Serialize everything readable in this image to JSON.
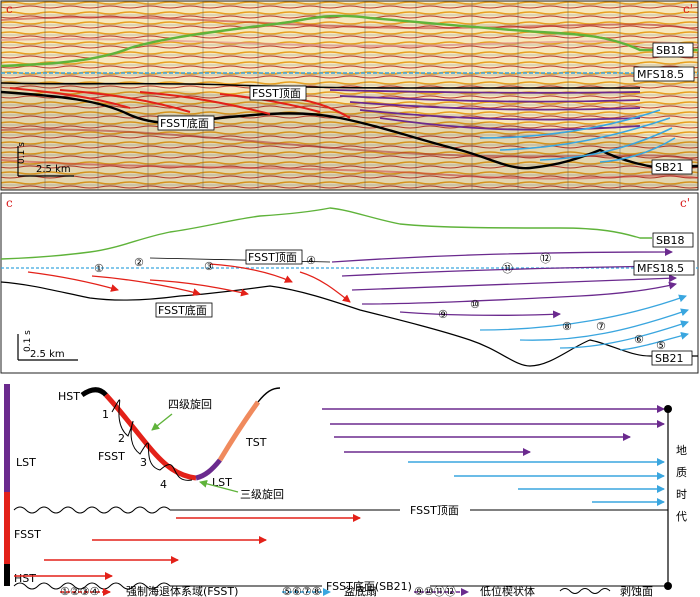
{
  "panel_top": {
    "corner_left": "c",
    "corner_right": "c'",
    "labels": {
      "sb18": "SB18",
      "mfs": "MFS18.5",
      "sb21": "SB21",
      "fsst_top": "FSST顶面",
      "fsst_bottom": "FSST底面",
      "vscale": "0.1 s",
      "hscale": "2.5 km"
    }
  },
  "panel_mid": {
    "corner_left": "c",
    "corner_right": "c'",
    "labels": {
      "sb18": "SB18",
      "mfs": "MFS18.5",
      "sb21": "SB21",
      "fsst_top": "FSST顶面",
      "fsst_bottom": "FSST底面",
      "vscale": "0.1 s",
      "hscale": "2.5 km"
    },
    "numbers": [
      "①",
      "②",
      "③",
      "④",
      "⑤",
      "⑥",
      "⑦",
      "⑧",
      "⑨",
      "⑩",
      "⑪",
      "⑫"
    ]
  },
  "panel_bottom": {
    "left_labels": {
      "lst": "LST",
      "fsst": "FSST",
      "hst": "HST"
    },
    "curve_labels": {
      "hst": "HST",
      "fsst": "FSST",
      "tst": "TST",
      "lst": "LST",
      "n1": "1",
      "n2": "2",
      "n3": "3",
      "n4": "4",
      "fourth_order": "四级旋回",
      "third_order": "三级旋回"
    },
    "surface_top": "FSST顶面",
    "surface_bottom": "FSST底面(SB21)",
    "time_axis": [
      "地",
      "质",
      "时",
      "代"
    ]
  },
  "legend": {
    "fsst_nums": "①②③④",
    "fsst_text": "强制海退体系域(FSST)",
    "fan_nums": "⑤⑥⑦⑧",
    "fan_text": "盆底扇",
    "wedge_nums": "⑨⑩⑪⑫",
    "wedge_text": "低位楔状体",
    "erosion_text": "剥蚀面"
  },
  "colors": {
    "red": "#e32119",
    "purple": "#6b2a8e",
    "blue": "#3aa6df",
    "green": "#5fb33a",
    "salmon": "#f08a5d"
  }
}
